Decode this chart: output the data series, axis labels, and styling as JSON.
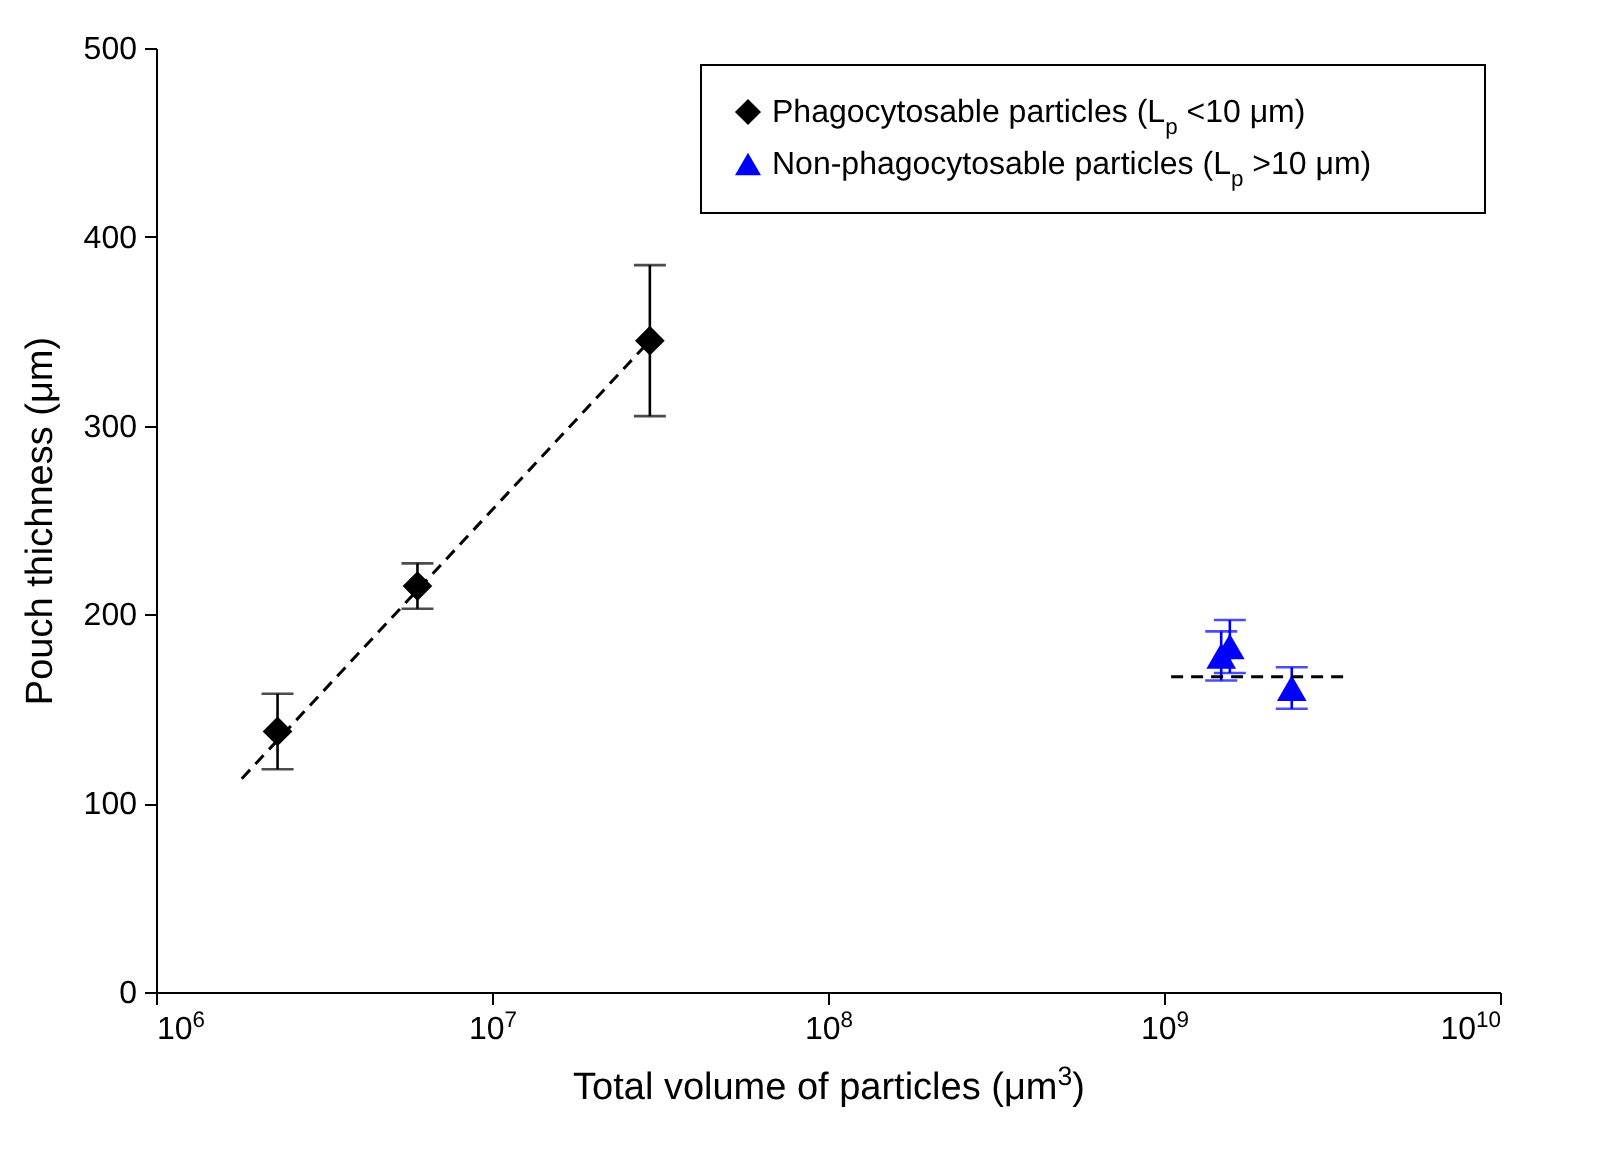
{
  "chart_data": {
    "type": "scatter",
    "xlabel": "Total volume of particles (μm$^{3}$)",
    "ylabel": "Pouch thichness (μm)",
    "log": "x",
    "grid": false,
    "legend": "top right",
    "xlim": [
      1000000,
      10000000000
    ],
    "xticks": [
      {
        "value": 1000000,
        "label": "10$^{6}$"
      },
      {
        "value": 10000000,
        "label": "10$^{7}$"
      },
      {
        "value": 100000000,
        "label": "10$^{8}$"
      },
      {
        "value": 1000000000,
        "label": "10$^{9}$"
      },
      {
        "value": 10000000000,
        "label": "10$^{10}$"
      }
    ],
    "ylim": [
      0,
      500
    ],
    "yticks": [
      0,
      100,
      200,
      300,
      400,
      500
    ],
    "series": [
      {
        "name": "Phagocytosable particles (L$_{p}$ <10 μm)",
        "type": "scatter",
        "marker": "diamond",
        "color": "#000000",
        "x": [
          2300000,
          6000000,
          29500000
        ],
        "values": [
          138,
          215,
          345
        ],
        "errors": [
          20,
          12,
          40
        ]
      },
      {
        "name": "Non-phagocytosable particles (L$_{p}$ >10 μm)",
        "type": "scatter",
        "marker": "triangle",
        "color": "#0000ff",
        "x": [
          1480000000,
          1570000000,
          2400000000
        ],
        "values": [
          178,
          183,
          161
        ],
        "errors": [
          13,
          14,
          11
        ]
      },
      {
        "type": "line",
        "line_style": "dashed",
        "color": "#000000",
        "x": [
          1800000,
          29500000
        ],
        "values": [
          113,
          345
        ]
      },
      {
        "type": "line",
        "line_style": "dashed",
        "color": "#000000",
        "x": [
          1050000000,
          3500000000
        ],
        "values": [
          167,
          167
        ]
      }
    ]
  }
}
